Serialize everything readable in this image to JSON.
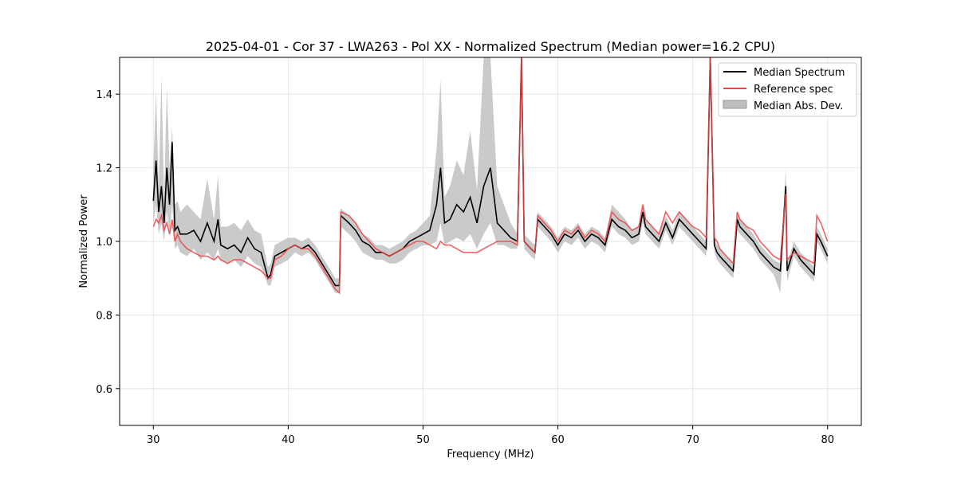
{
  "chart_data": {
    "type": "line",
    "title": "2025-04-01 - Cor 37 - LWA263 - Pol XX - Normalized Spectrum (Median power=16.2 CPU)",
    "xlabel": "Frequency (MHz)",
    "ylabel": "Normalized Power",
    "xlim": [
      27.5,
      82.5
    ],
    "ylim": [
      0.5,
      1.5
    ],
    "x_ticks": [
      30,
      40,
      50,
      60,
      70,
      80
    ],
    "y_ticks": [
      0.6,
      0.8,
      1.0,
      1.2,
      1.4
    ],
    "grid": true,
    "legend_position": "top-right",
    "colors": {
      "median": "#000000",
      "reference": "#ee4444",
      "mad": "#bdbdbd"
    },
    "series": [
      {
        "name": "Median Spectrum",
        "x": [
          30.0,
          30.2,
          30.4,
          30.6,
          30.8,
          31.0,
          31.2,
          31.4,
          31.6,
          31.8,
          32.0,
          32.5,
          33.0,
          33.5,
          34.0,
          34.5,
          34.8,
          35.0,
          35.5,
          36.0,
          36.5,
          37.0,
          37.5,
          38.0,
          38.5,
          38.7,
          39.0,
          39.5,
          40.0,
          40.5,
          41.0,
          41.5,
          42.0,
          42.5,
          43.0,
          43.5,
          43.8,
          43.9,
          44.5,
          45.0,
          45.5,
          46.0,
          46.5,
          47.0,
          47.5,
          48.0,
          48.5,
          49.0,
          49.5,
          50.0,
          50.5,
          51.0,
          51.3,
          51.6,
          52.0,
          52.5,
          53.0,
          53.5,
          54.0,
          54.5,
          55.0,
          55.5,
          56.0,
          56.5,
          57.0,
          57.3,
          57.5,
          58.0,
          58.3,
          58.5,
          59.0,
          59.5,
          60.0,
          60.5,
          61.0,
          61.5,
          62.0,
          62.5,
          63.0,
          63.5,
          64.0,
          64.5,
          65.0,
          65.5,
          66.0,
          66.3,
          66.5,
          67.0,
          67.5,
          68.0,
          68.5,
          69.0,
          69.5,
          70.0,
          70.5,
          71.0,
          71.3,
          71.6,
          71.8,
          72.0,
          72.5,
          73.0,
          73.3,
          73.5,
          74.0,
          74.5,
          75.0,
          75.5,
          76.0,
          76.5,
          76.9,
          77.0,
          77.5,
          78.0,
          78.5,
          79.0,
          79.2,
          79.5,
          80.0
        ],
        "y": [
          1.11,
          1.22,
          1.08,
          1.15,
          1.05,
          1.2,
          1.1,
          1.27,
          1.03,
          1.04,
          1.02,
          1.02,
          1.03,
          1.0,
          1.05,
          1.0,
          1.06,
          0.99,
          0.98,
          0.99,
          0.97,
          1.01,
          0.98,
          0.97,
          0.9,
          0.91,
          0.96,
          0.97,
          0.98,
          0.99,
          0.98,
          0.99,
          0.97,
          0.94,
          0.91,
          0.88,
          0.88,
          1.07,
          1.05,
          1.03,
          1.0,
          0.99,
          0.97,
          0.97,
          0.96,
          0.97,
          0.98,
          1.0,
          1.01,
          1.02,
          1.03,
          1.1,
          1.2,
          1.05,
          1.06,
          1.1,
          1.08,
          1.12,
          1.05,
          1.15,
          1.2,
          1.05,
          1.03,
          1.01,
          1.0,
          1.5,
          1.0,
          0.98,
          0.97,
          1.06,
          1.04,
          1.02,
          0.99,
          1.02,
          1.01,
          1.03,
          1.0,
          1.02,
          1.01,
          0.99,
          1.06,
          1.04,
          1.03,
          1.01,
          1.02,
          1.08,
          1.04,
          1.02,
          1.0,
          1.05,
          1.01,
          1.06,
          1.04,
          1.02,
          1.0,
          0.98,
          1.5,
          0.99,
          0.97,
          0.96,
          0.94,
          0.92,
          1.06,
          1.04,
          1.02,
          1.0,
          0.97,
          0.95,
          0.93,
          0.92,
          1.15,
          0.92,
          0.98,
          0.95,
          0.93,
          0.91,
          1.02,
          1.0,
          0.96
        ]
      },
      {
        "name": "Reference spec",
        "x": [
          30.0,
          30.2,
          30.4,
          30.6,
          30.8,
          31.0,
          31.2,
          31.4,
          31.6,
          31.8,
          32.0,
          32.5,
          33.0,
          33.5,
          34.0,
          34.5,
          34.8,
          35.0,
          35.5,
          36.0,
          36.5,
          37.0,
          37.5,
          38.0,
          38.5,
          38.7,
          39.0,
          39.5,
          40.0,
          40.5,
          41.0,
          41.5,
          42.0,
          42.5,
          43.0,
          43.5,
          43.8,
          43.9,
          44.5,
          45.0,
          45.5,
          46.0,
          46.5,
          47.0,
          47.5,
          48.0,
          48.5,
          49.0,
          49.5,
          50.0,
          50.5,
          51.0,
          51.3,
          51.6,
          52.0,
          52.5,
          53.0,
          53.5,
          54.0,
          54.5,
          55.0,
          55.5,
          56.0,
          56.5,
          57.0,
          57.3,
          57.5,
          58.0,
          58.3,
          58.5,
          59.0,
          59.5,
          60.0,
          60.5,
          61.0,
          61.5,
          62.0,
          62.5,
          63.0,
          63.5,
          64.0,
          64.5,
          65.0,
          65.5,
          66.0,
          66.3,
          66.5,
          67.0,
          67.5,
          68.0,
          68.5,
          69.0,
          69.5,
          70.0,
          70.5,
          71.0,
          71.3,
          71.6,
          71.8,
          72.0,
          72.5,
          73.0,
          73.3,
          73.5,
          74.0,
          74.5,
          75.0,
          75.5,
          76.0,
          76.5,
          76.9,
          77.0,
          77.5,
          78.0,
          78.5,
          79.0,
          79.2,
          79.5,
          80.0
        ],
        "y": [
          1.04,
          1.06,
          1.05,
          1.07,
          1.03,
          1.05,
          1.02,
          1.06,
          1.0,
          1.02,
          1.0,
          0.98,
          0.97,
          0.96,
          0.96,
          0.95,
          0.96,
          0.95,
          0.94,
          0.95,
          0.95,
          0.94,
          0.93,
          0.92,
          0.9,
          0.9,
          0.95,
          0.96,
          0.98,
          0.99,
          0.98,
          0.98,
          0.96,
          0.93,
          0.9,
          0.87,
          0.86,
          1.08,
          1.07,
          1.05,
          1.02,
          1.0,
          0.98,
          0.97,
          0.96,
          0.97,
          0.98,
          0.99,
          1.0,
          1.0,
          0.99,
          0.98,
          1.0,
          0.99,
          0.99,
          0.98,
          0.97,
          0.97,
          0.97,
          0.98,
          0.99,
          1.0,
          1.0,
          1.0,
          0.99,
          1.5,
          1.0,
          0.98,
          0.97,
          1.07,
          1.05,
          1.03,
          1.0,
          1.03,
          1.02,
          1.04,
          1.01,
          1.03,
          1.02,
          1.0,
          1.08,
          1.06,
          1.05,
          1.03,
          1.04,
          1.1,
          1.06,
          1.04,
          1.02,
          1.08,
          1.05,
          1.08,
          1.06,
          1.04,
          1.03,
          1.01,
          1.5,
          1.01,
          1.0,
          0.98,
          0.96,
          0.94,
          1.08,
          1.06,
          1.04,
          1.03,
          1.0,
          0.98,
          0.96,
          0.95,
          1.13,
          0.95,
          0.97,
          0.96,
          0.95,
          0.94,
          1.07,
          1.05,
          1.0
        ]
      },
      {
        "name": "Median Abs. Dev.",
        "x": [
          30.0,
          30.2,
          30.4,
          30.6,
          30.8,
          31.0,
          31.2,
          31.4,
          31.6,
          31.8,
          32.0,
          32.5,
          33.0,
          33.5,
          34.0,
          34.5,
          34.8,
          35.0,
          35.5,
          36.0,
          36.5,
          37.0,
          37.5,
          38.0,
          38.5,
          38.7,
          39.0,
          39.5,
          40.0,
          40.5,
          41.0,
          41.5,
          42.0,
          42.5,
          43.0,
          43.5,
          43.8,
          43.9,
          44.5,
          45.0,
          45.5,
          46.0,
          46.5,
          47.0,
          47.5,
          48.0,
          48.5,
          49.0,
          49.5,
          50.0,
          50.5,
          51.0,
          51.3,
          51.6,
          52.0,
          52.5,
          53.0,
          53.5,
          54.0,
          54.5,
          55.0,
          55.5,
          56.0,
          56.5,
          57.0,
          57.3,
          57.5,
          58.0,
          58.3,
          58.5,
          59.0,
          59.5,
          60.0,
          60.5,
          61.0,
          61.5,
          62.0,
          62.5,
          63.0,
          63.5,
          64.0,
          64.5,
          65.0,
          65.5,
          66.0,
          66.3,
          66.5,
          67.0,
          67.5,
          68.0,
          68.5,
          69.0,
          69.5,
          70.0,
          70.5,
          71.0,
          71.3,
          71.6,
          71.8,
          72.0,
          72.5,
          73.0,
          73.3,
          73.5,
          74.0,
          74.5,
          75.0,
          75.5,
          76.0,
          76.5,
          76.9,
          77.0,
          77.5,
          78.0,
          78.5,
          79.0,
          79.2,
          79.5,
          80.0
        ],
        "low": [
          1.05,
          1.1,
          1.02,
          1.05,
          1.0,
          1.08,
          1.02,
          1.1,
          0.98,
          0.99,
          0.97,
          0.96,
          0.98,
          0.95,
          0.97,
          0.95,
          0.98,
          0.95,
          0.94,
          0.95,
          0.93,
          0.96,
          0.94,
          0.93,
          0.88,
          0.88,
          0.93,
          0.94,
          0.95,
          0.97,
          0.96,
          0.97,
          0.95,
          0.92,
          0.89,
          0.86,
          0.86,
          1.04,
          1.02,
          1.0,
          0.97,
          0.96,
          0.95,
          0.95,
          0.94,
          0.94,
          0.95,
          0.97,
          0.98,
          0.99,
          0.99,
          1.0,
          1.05,
          0.99,
          1.0,
          1.01,
          1.0,
          1.02,
          0.98,
          1.02,
          1.05,
          0.99,
          0.99,
          0.98,
          0.98,
          1.45,
          0.98,
          0.96,
          0.95,
          1.04,
          1.02,
          1.0,
          0.97,
          1.0,
          0.99,
          1.01,
          0.98,
          1.0,
          0.99,
          0.97,
          1.04,
          1.02,
          1.01,
          0.99,
          1.0,
          1.05,
          1.02,
          1.0,
          0.98,
          1.03,
          0.99,
          1.04,
          1.02,
          1.0,
          0.98,
          0.96,
          1.45,
          0.97,
          0.95,
          0.94,
          0.92,
          0.9,
          1.03,
          1.02,
          1.0,
          0.98,
          0.95,
          0.93,
          0.91,
          0.86,
          1.1,
          0.89,
          0.96,
          0.93,
          0.91,
          0.89,
          1.0,
          0.98,
          0.94
        ],
        "high": [
          1.2,
          1.41,
          1.15,
          1.45,
          1.12,
          1.42,
          1.2,
          1.31,
          1.1,
          1.11,
          1.08,
          1.1,
          1.08,
          1.06,
          1.17,
          1.06,
          1.18,
          1.04,
          1.04,
          1.05,
          1.03,
          1.06,
          1.03,
          1.02,
          0.93,
          0.94,
          0.99,
          1.0,
          1.01,
          1.01,
          1.0,
          1.01,
          0.99,
          0.96,
          0.93,
          0.9,
          0.9,
          1.09,
          1.07,
          1.05,
          1.02,
          1.01,
          0.99,
          0.99,
          0.98,
          0.99,
          1.0,
          1.02,
          1.03,
          1.05,
          1.07,
          1.25,
          1.44,
          1.12,
          1.15,
          1.22,
          1.18,
          1.3,
          1.14,
          1.5,
          1.5,
          1.15,
          1.1,
          1.05,
          1.02,
          1.5,
          1.02,
          1.0,
          0.99,
          1.08,
          1.06,
          1.04,
          1.01,
          1.04,
          1.03,
          1.05,
          1.02,
          1.04,
          1.03,
          1.01,
          1.1,
          1.08,
          1.06,
          1.03,
          1.04,
          1.1,
          1.06,
          1.04,
          1.02,
          1.07,
          1.03,
          1.08,
          1.06,
          1.04,
          1.02,
          1.0,
          1.5,
          1.01,
          0.99,
          0.98,
          0.96,
          0.94,
          1.08,
          1.06,
          1.04,
          1.02,
          0.99,
          0.97,
          0.95,
          0.94,
          1.2,
          0.94,
          1.0,
          0.97,
          0.95,
          0.93,
          1.04,
          1.02,
          0.98
        ]
      }
    ]
  }
}
